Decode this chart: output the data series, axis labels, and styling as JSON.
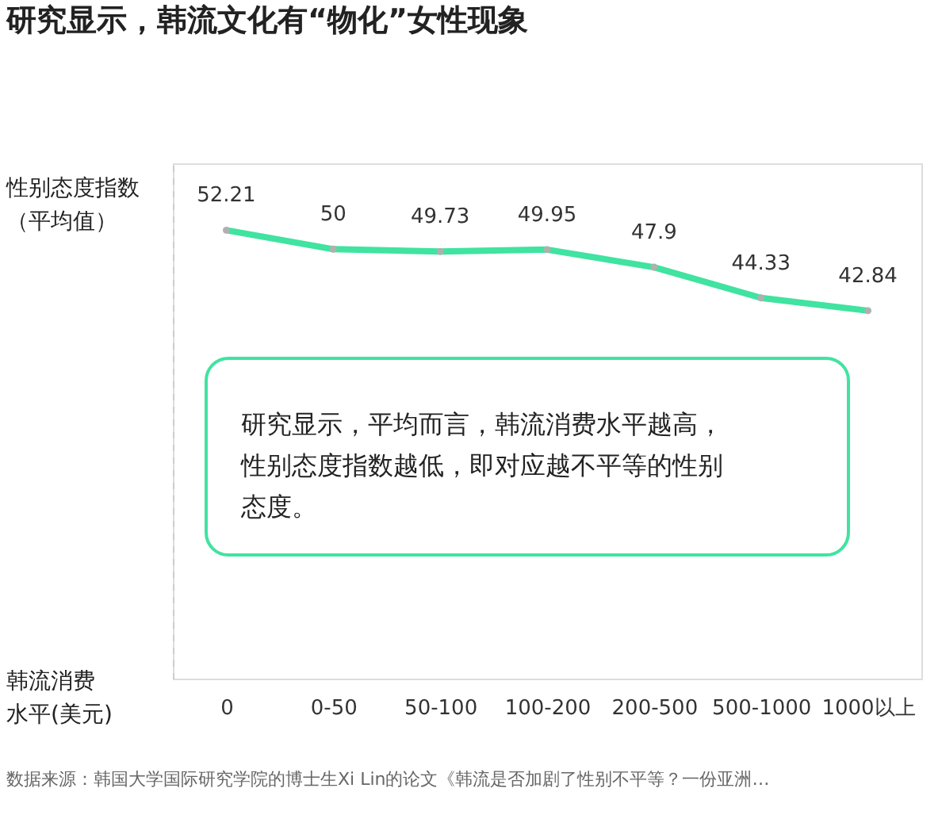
{
  "chart_data": {
    "type": "line",
    "title": "研究显示，韩流文化有“物化”女性现象",
    "ylabel": "性别态度指数（平均值）",
    "xlabel": "韩流消费水平(美元)",
    "categories": [
      "0",
      "0-50",
      "50-100",
      "100-200",
      "200-500",
      "500-1000",
      "1000以上"
    ],
    "series": [
      {
        "color": "#40e3a0",
        "values": [
          52.21,
          50,
          49.73,
          49.95,
          47.9,
          44.33,
          42.84
        ]
      }
    ],
    "ylim": [
      0,
      60
    ],
    "tick_labels": "x",
    "data_labels": true,
    "marker": "circle",
    "line_style": "solid",
    "grid": false,
    "annotations": [
      "研究显示，平均而言，韩流消费水平越高，性别态度指数越低，即对应越不平等的性别态度。",
      "数据来源：韩国大学国际研究学院的博士生Xi Lin的论文《韩流是否加剧了性别不平等？一份亚洲…"
    ]
  }
}
